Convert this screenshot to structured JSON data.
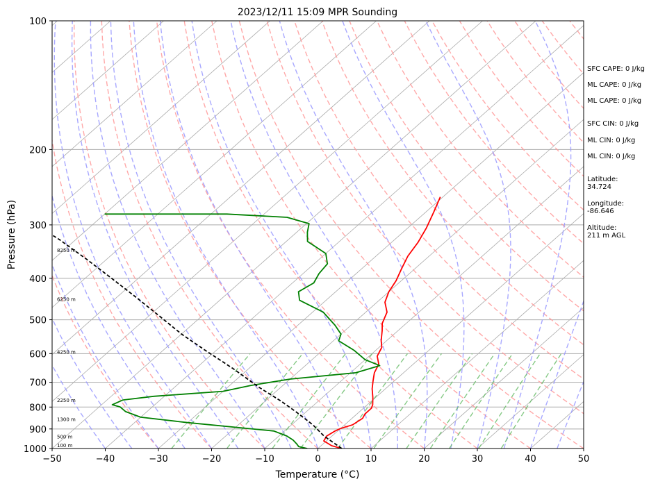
{
  "chart_data": {
    "type": "line",
    "title": "2023/12/11 15:09 MPR Sounding",
    "xlabel": "Temperature (°C)",
    "ylabel": "Pressure (hPa)",
    "xlim": [
      -50,
      50
    ],
    "ylim": [
      1000,
      100
    ],
    "y_scale": "log",
    "x_ticks": [
      "−50",
      "−40",
      "−30",
      "−20",
      "−10",
      "0",
      "10",
      "20",
      "30",
      "40",
      "50"
    ],
    "x_tick_values": [
      -50,
      -40,
      -30,
      -20,
      -10,
      0,
      10,
      20,
      30,
      40,
      50
    ],
    "y_ticks": [
      "1000",
      "900",
      "800",
      "700",
      "600",
      "500",
      "400",
      "300",
      "200",
      "100"
    ],
    "y_tick_values": [
      1000,
      900,
      800,
      700,
      600,
      500,
      400,
      300,
      200,
      100
    ],
    "skew": true,
    "grid": true,
    "height_labels": [
      {
        "p": 1000,
        "text": "100 m"
      },
      {
        "p": 955,
        "text": "500 m"
      },
      {
        "p": 870,
        "text": "1300 m"
      },
      {
        "p": 785,
        "text": "2250 m"
      },
      {
        "p": 605,
        "text": "4250 m"
      },
      {
        "p": 455,
        "text": "6250 m"
      },
      {
        "p": 350,
        "text": "8250 m"
      }
    ],
    "series": [
      {
        "role": "temperature",
        "color": "#ff0000",
        "points": [
          [
            4.5,
            1000
          ],
          [
            2,
            985
          ],
          [
            -0.5,
            960
          ],
          [
            -1,
            935
          ],
          [
            -0.5,
            910
          ],
          [
            0,
            898
          ],
          [
            1.5,
            880
          ],
          [
            2,
            850
          ],
          [
            1.5,
            830
          ],
          [
            1.5,
            805
          ],
          [
            1,
            790
          ],
          [
            -0.5,
            760
          ],
          [
            -2.5,
            725
          ],
          [
            -4,
            695
          ],
          [
            -5.5,
            665
          ],
          [
            -6.5,
            635
          ],
          [
            -8.5,
            608
          ],
          [
            -9.5,
            580
          ],
          [
            -11,
            560
          ],
          [
            -13,
            530
          ],
          [
            -14.5,
            510
          ],
          [
            -16,
            480
          ],
          [
            -18.5,
            455
          ],
          [
            -20,
            430
          ],
          [
            -21,
            405
          ],
          [
            -22.5,
            380
          ],
          [
            -24,
            355
          ],
          [
            -25,
            330
          ],
          [
            -26.5,
            305
          ],
          [
            -28.5,
            280
          ],
          [
            -30.5,
            258
          ]
        ]
      },
      {
        "role": "dewpoint",
        "color": "#008000",
        "points": [
          [
            -2,
            1000
          ],
          [
            -4,
            990
          ],
          [
            -5,
            975
          ],
          [
            -6.5,
            955
          ],
          [
            -8.5,
            935
          ],
          [
            -12,
            910
          ],
          [
            -30,
            870
          ],
          [
            -40,
            845
          ],
          [
            -44,
            820
          ],
          [
            -46,
            800
          ],
          [
            -48,
            790
          ],
          [
            -47,
            770
          ],
          [
            -42,
            755
          ],
          [
            -30,
            735
          ],
          [
            -26,
            712
          ],
          [
            -20,
            688
          ],
          [
            -9,
            665
          ],
          [
            -6,
            640
          ],
          [
            -10,
            620
          ],
          [
            -14,
            590
          ],
          [
            -19,
            560
          ],
          [
            -20,
            540
          ],
          [
            -23,
            515
          ],
          [
            -28,
            480
          ],
          [
            -35,
            450
          ],
          [
            -37,
            430
          ],
          [
            -36,
            410
          ],
          [
            -37,
            390
          ],
          [
            -37.5,
            370
          ],
          [
            -40,
            350
          ],
          [
            -46,
            328
          ],
          [
            -48,
            312
          ],
          [
            -49.5,
            298
          ],
          [
            -55,
            288
          ],
          [
            -67,
            283
          ],
          [
            -90,
            283
          ]
        ]
      },
      {
        "role": "parcel",
        "color": "#000000",
        "style": "dashed",
        "points": [
          [
            4.5,
            1000
          ],
          [
            -1.5,
            935
          ],
          [
            -6,
            880
          ],
          [
            -12,
            820
          ],
          [
            -17,
            775
          ],
          [
            -24,
            720
          ],
          [
            -33,
            650
          ],
          [
            -42,
            590
          ],
          [
            -50,
            540
          ],
          [
            -58,
            490
          ],
          [
            -66,
            445
          ],
          [
            -75,
            400
          ],
          [
            -84,
            360
          ],
          [
            -93,
            325
          ],
          [
            -99,
            305
          ],
          [
            -104,
            285
          ]
        ]
      }
    ]
  },
  "stats": [
    {
      "text": "SFC CAPE: 0 J/kg"
    },
    {
      "text": "ML CAPE: 0 J/kg"
    },
    {
      "text": "ML CAPE: 0 J/kg"
    },
    {
      "text": "SFC CIN: 0 J/kg"
    },
    {
      "text": "ML CIN: 0 J/kg"
    },
    {
      "text": "ML CIN: 0 J/kg"
    },
    {
      "text": "Latitude:",
      "text2": "34.724"
    },
    {
      "text": "Longitude:",
      "text2": "-86.646"
    },
    {
      "text": "Altitude:",
      "text2": "211 m AGL"
    }
  ],
  "colors": {
    "temperature": "#ff0000",
    "dewpoint": "#008000",
    "parcel": "#000000",
    "dry_adiabats": "#ff9999",
    "moist_adiabats": "#9999ff",
    "mixing_ratio": "#66bb66",
    "isotherms": "#aaaaaa"
  }
}
